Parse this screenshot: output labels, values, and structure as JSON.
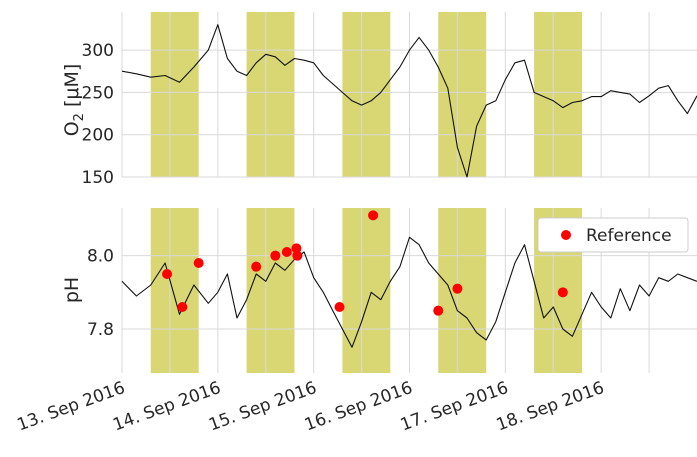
{
  "chart_data": [
    {
      "type": "line",
      "panel": "top",
      "ylabel_main": "O",
      "ylabel_sub": "2",
      "ylabel_unit": "[μM]",
      "ylim": [
        150,
        345
      ],
      "yticks": [
        "150",
        "200",
        "250",
        "300"
      ],
      "ytick_values": [
        150,
        200,
        250,
        300
      ],
      "grid": true,
      "x": [
        0,
        0.15,
        0.3,
        0.45,
        0.6,
        0.75,
        0.9,
        1.0,
        1.1,
        1.2,
        1.3,
        1.4,
        1.5,
        1.6,
        1.7,
        1.8,
        1.9,
        2.0,
        2.1,
        2.2,
        2.3,
        2.4,
        2.5,
        2.6,
        2.7,
        2.8,
        2.9,
        3.0,
        3.1,
        3.2,
        3.3,
        3.4,
        3.5,
        3.6,
        3.7,
        3.8,
        3.9,
        4.0,
        4.1,
        4.2,
        4.3,
        4.4,
        4.5,
        4.6,
        4.7,
        4.8,
        4.9,
        5.0,
        5.1,
        5.2,
        5.3,
        5.4,
        5.5,
        5.6,
        5.7,
        5.8,
        5.9,
        6.0
      ],
      "values": [
        275,
        272,
        268,
        270,
        262,
        280,
        300,
        330,
        290,
        275,
        270,
        285,
        295,
        292,
        282,
        290,
        288,
        285,
        270,
        260,
        250,
        240,
        235,
        240,
        250,
        265,
        280,
        300,
        315,
        300,
        280,
        255,
        185,
        150,
        210,
        235,
        240,
        265,
        285,
        288,
        250,
        245,
        240,
        232,
        238,
        240,
        245,
        245,
        252,
        250,
        248,
        238,
        246,
        255,
        258,
        240,
        225,
        246
      ]
    },
    {
      "type": "line",
      "panel": "bottom",
      "ylabel": "pH",
      "ylim": [
        7.68,
        8.13
      ],
      "yticks": [
        "7.8",
        "8.0"
      ],
      "ytick_values": [
        7.8,
        8.0
      ],
      "grid": true,
      "x": [
        0,
        0.15,
        0.3,
        0.45,
        0.6,
        0.75,
        0.9,
        1.0,
        1.1,
        1.2,
        1.3,
        1.4,
        1.5,
        1.6,
        1.7,
        1.8,
        1.9,
        2.0,
        2.1,
        2.2,
        2.3,
        2.4,
        2.5,
        2.6,
        2.7,
        2.8,
        2.9,
        3.0,
        3.1,
        3.2,
        3.3,
        3.4,
        3.5,
        3.6,
        3.7,
        3.8,
        3.9,
        4.0,
        4.1,
        4.2,
        4.3,
        4.4,
        4.5,
        4.6,
        4.7,
        4.8,
        4.9,
        5.0,
        5.1,
        5.2,
        5.3,
        5.4,
        5.5,
        5.6,
        5.7,
        5.8,
        5.9,
        6.0
      ],
      "values": [
        7.93,
        7.89,
        7.92,
        7.98,
        7.84,
        7.92,
        7.87,
        7.9,
        7.95,
        7.83,
        7.88,
        7.95,
        7.93,
        7.98,
        7.96,
        7.99,
        8.01,
        7.94,
        7.9,
        7.85,
        7.8,
        7.75,
        7.82,
        7.9,
        7.88,
        7.93,
        7.97,
        8.05,
        8.03,
        7.98,
        7.95,
        7.92,
        7.85,
        7.83,
        7.79,
        7.77,
        7.82,
        7.9,
        7.98,
        8.03,
        7.93,
        7.83,
        7.86,
        7.8,
        7.78,
        7.84,
        7.9,
        7.86,
        7.83,
        7.91,
        7.85,
        7.92,
        7.89,
        7.94,
        7.93,
        7.95,
        7.94,
        7.93
      ],
      "scatter_series": {
        "name": "Reference",
        "color": "#ff0000",
        "x": [
          0.47,
          0.63,
          0.8,
          1.4,
          1.6,
          1.72,
          1.82,
          1.83,
          2.27,
          2.62,
          3.3,
          3.5,
          4.6
        ],
        "values": [
          7.95,
          7.86,
          7.98,
          7.97,
          8.0,
          8.01,
          8.02,
          8.0,
          7.86,
          8.11,
          7.85,
          7.91,
          7.9
        ]
      },
      "legend": {
        "entries": [
          "Reference"
        ],
        "placement": "top-right"
      }
    }
  ],
  "x_axis": {
    "range": [
      0,
      6.0
    ],
    "ticks": [
      {
        "value": 0,
        "label": "13. Sep 2016"
      },
      {
        "value": 1,
        "label": "14. Sep 2016"
      },
      {
        "value": 2,
        "label": "15. Sep 2016"
      },
      {
        "value": 3,
        "label": "16. Sep 2016"
      },
      {
        "value": 4,
        "label": "17. Sep 2016"
      },
      {
        "value": 5,
        "label": "18. Sep 2016"
      }
    ],
    "minor_gridlines": [
      0.5,
      1.5,
      2.5,
      3.5,
      4.5,
      5.5
    ]
  },
  "daylight_bands": [
    [
      0.3,
      0.8
    ],
    [
      1.3,
      1.8
    ],
    [
      2.3,
      2.8
    ],
    [
      3.3,
      3.8
    ],
    [
      4.3,
      4.8
    ]
  ],
  "colors": {
    "band": "#d2d05a",
    "line": "#111111",
    "reference": "#ff0000",
    "grid": "#d9d9d9"
  }
}
